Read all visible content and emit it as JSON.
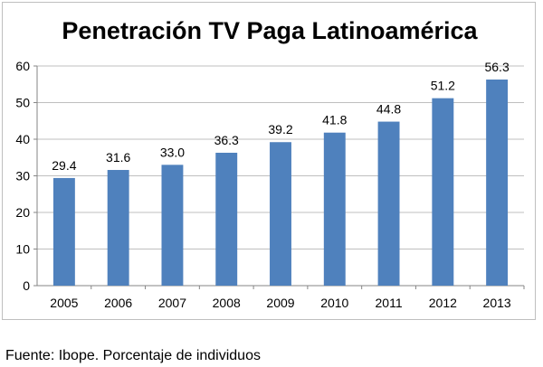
{
  "chart_data": {
    "type": "bar",
    "title": "Penetración TV Paga Latinoamérica",
    "categories": [
      "2005",
      "2006",
      "2007",
      "2008",
      "2009",
      "2010",
      "2011",
      "2012",
      "2013"
    ],
    "values": [
      29.4,
      31.6,
      33.0,
      36.3,
      39.2,
      41.8,
      44.8,
      51.2,
      56.3
    ],
    "data_labels": [
      "29.4",
      "31.6",
      "33.0",
      "36.3",
      "39.2",
      "41.8",
      "44.8",
      "51.2",
      "56.3"
    ],
    "ylim": [
      0,
      60
    ],
    "yticks": [
      0,
      10,
      20,
      30,
      40,
      50,
      60
    ],
    "xlabel": "",
    "ylabel": "",
    "grid": true,
    "legend": "none",
    "bar_color": "#4f81bd"
  },
  "footer": {
    "source": "Fuente: Ibope. Porcentaje de individuos"
  }
}
